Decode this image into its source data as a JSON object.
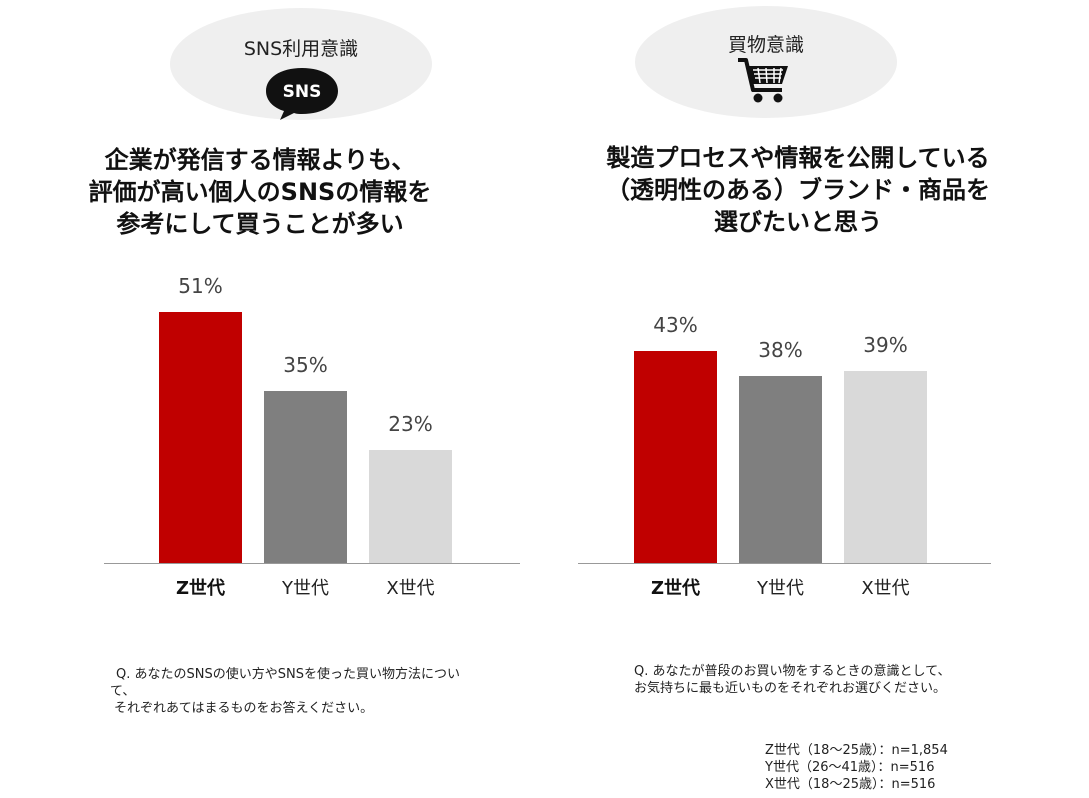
{
  "panels": [
    {
      "bubble_label": "SNS利用意識",
      "icon": "sns-speech-bubble-icon",
      "icon_text": "SNS",
      "headline": [
        "企業が発信する情報よりも、",
        "評価が高い個人のSNSの情報を",
        "参考にして買うことが多い"
      ],
      "note": [
        "Q. あなたのSNSの使い方やSNSを使った買い物方法につい",
        "て、",
        "それぞれあてはまるものをお答えください。"
      ]
    },
    {
      "bubble_label": "買物意識",
      "icon": "shopping-cart-icon",
      "headline": [
        "製造プロセスや情報を公開している",
        "（透明性のある）ブランド・商品を",
        "選びたいと思う"
      ],
      "note": [
        "Q. あなたが普段のお買い物をするときの意識として、",
        "お気持ちに最も近いものをそれぞれお選びください。"
      ]
    }
  ],
  "samples": [
    "Z世代（18～25歳）：n=1,854",
    "Y世代（26～41歳）：n=516",
    "X世代（18～25歳）：n=516"
  ],
  "colors": {
    "z": "#c00000",
    "y": "#7f7f7f",
    "x": "#d9d9d9",
    "bubble": "#efefef"
  },
  "chart_data": [
    {
      "type": "bar",
      "title": "企業が発信する情報よりも、評価が高い個人のSNSの情報を参考にして買うことが多い",
      "categories": [
        "Z世代",
        "Y世代",
        "X世代"
      ],
      "values": [
        51,
        35,
        23
      ],
      "value_labels": [
        "51%",
        "35%",
        "23%"
      ],
      "ylim": [
        0,
        60
      ],
      "grid": false,
      "legend": "none"
    },
    {
      "type": "bar",
      "title": "製造プロセスや情報を公開している（透明性のある）ブランド・商品を選びたいと思う",
      "categories": [
        "Z世代",
        "Y世代",
        "X世代"
      ],
      "values": [
        43,
        38,
        39
      ],
      "value_labels": [
        "43%",
        "38%",
        "39%"
      ],
      "ylim": [
        0,
        60
      ],
      "grid": false,
      "legend": "none"
    }
  ]
}
